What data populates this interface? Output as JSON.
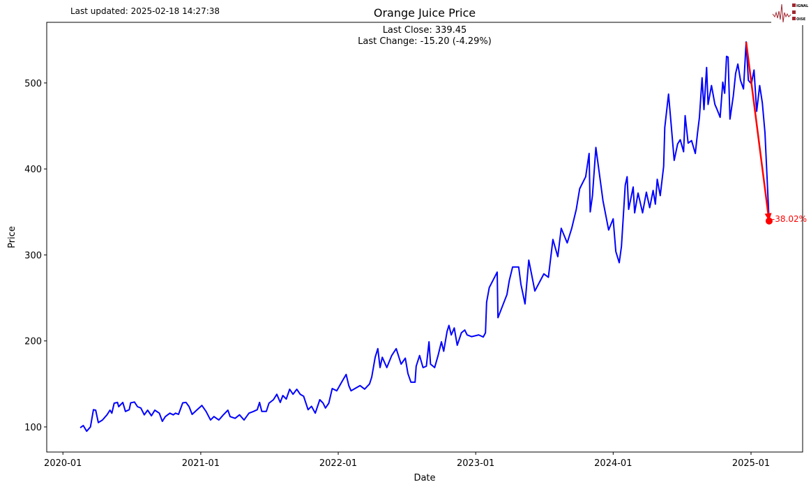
{
  "header": {
    "last_updated": "Last updated: 2025-02-18 14:27:38",
    "logo_text": "SIGNAL 2 NOISE"
  },
  "chart_data": {
    "type": "line",
    "title": "Orange Juice  Price",
    "subtitle_lines": [
      "Last Close: 339.45",
      "Last Change: -15.20 (-4.29%)"
    ],
    "xlabel": "Date",
    "ylabel": "Price",
    "xlim": [
      "2019-11-19",
      "2025-05-18"
    ],
    "ylim": [
      70.8,
      570.5
    ],
    "x_ticks": [
      {
        "date": "2020-01-01",
        "label": "2020-01"
      },
      {
        "date": "2021-01-01",
        "label": "2021-01"
      },
      {
        "date": "2022-01-01",
        "label": "2022-01"
      },
      {
        "date": "2023-01-01",
        "label": "2023-01"
      },
      {
        "date": "2024-01-01",
        "label": "2024-01"
      },
      {
        "date": "2025-01-01",
        "label": "2025-01"
      }
    ],
    "y_ticks": [
      100,
      200,
      300,
      400,
      500
    ],
    "grid": false,
    "colors": {
      "series": "#0000ff",
      "annotation": "#ff0000"
    },
    "series": [
      {
        "points": [
          [
            "2020-02-16",
            99
          ],
          [
            "2020-02-24",
            101.6
          ],
          [
            "2020-03-04",
            95
          ],
          [
            "2020-03-14",
            100
          ],
          [
            "2020-03-22",
            120
          ],
          [
            "2020-03-28",
            119.5
          ],
          [
            "2020-04-04",
            105
          ],
          [
            "2020-04-15",
            108
          ],
          [
            "2020-04-27",
            114
          ],
          [
            "2020-05-05",
            119.5
          ],
          [
            "2020-05-10",
            116
          ],
          [
            "2020-05-16",
            127.6
          ],
          [
            "2020-05-25",
            128.5
          ],
          [
            "2020-05-28",
            123.5
          ],
          [
            "2020-06-08",
            128.5
          ],
          [
            "2020-06-15",
            118
          ],
          [
            "2020-06-25",
            120
          ],
          [
            "2020-06-29",
            128
          ],
          [
            "2020-07-09",
            129
          ],
          [
            "2020-07-17",
            123.5
          ],
          [
            "2020-07-26",
            122
          ],
          [
            "2020-08-04",
            114
          ],
          [
            "2020-08-13",
            119.5
          ],
          [
            "2020-08-23",
            113
          ],
          [
            "2020-09-01",
            119.5
          ],
          [
            "2020-09-13",
            116
          ],
          [
            "2020-09-21",
            106.5
          ],
          [
            "2020-09-29",
            112
          ],
          [
            "2020-10-11",
            116
          ],
          [
            "2020-10-20",
            114
          ],
          [
            "2020-10-26",
            116
          ],
          [
            "2020-11-03",
            114.6
          ],
          [
            "2020-11-14",
            128
          ],
          [
            "2020-11-23",
            128.5
          ],
          [
            "2020-12-01",
            123.5
          ],
          [
            "2020-12-09",
            114.6
          ],
          [
            "2020-12-21",
            119.5
          ],
          [
            "2021-01-04",
            125
          ],
          [
            "2021-01-15",
            118
          ],
          [
            "2021-01-27",
            108
          ],
          [
            "2021-02-05",
            112
          ],
          [
            "2021-02-18",
            108
          ],
          [
            "2021-03-02",
            114
          ],
          [
            "2021-03-14",
            119.5
          ],
          [
            "2021-03-20",
            112
          ],
          [
            "2021-04-02",
            110
          ],
          [
            "2021-04-14",
            114
          ],
          [
            "2021-04-26",
            108
          ],
          [
            "2021-05-09",
            116
          ],
          [
            "2021-05-21",
            118
          ],
          [
            "2021-05-31",
            120
          ],
          [
            "2021-06-06",
            128.5
          ],
          [
            "2021-06-12",
            118
          ],
          [
            "2021-06-24",
            118
          ],
          [
            "2021-07-01",
            127.6
          ],
          [
            "2021-07-13",
            131.6
          ],
          [
            "2021-07-22",
            138
          ],
          [
            "2021-07-31",
            128.5
          ],
          [
            "2021-08-07",
            136.5
          ],
          [
            "2021-08-16",
            132.4
          ],
          [
            "2021-08-25",
            143.8
          ],
          [
            "2021-09-03",
            138
          ],
          [
            "2021-09-13",
            143.8
          ],
          [
            "2021-09-22",
            138
          ],
          [
            "2021-10-01",
            135.7
          ],
          [
            "2021-10-13",
            120
          ],
          [
            "2021-10-22",
            124
          ],
          [
            "2021-11-01",
            116
          ],
          [
            "2021-11-13",
            131.6
          ],
          [
            "2021-11-22",
            127.6
          ],
          [
            "2021-11-28",
            122
          ],
          [
            "2021-12-07",
            127.6
          ],
          [
            "2021-12-16",
            144.6
          ],
          [
            "2021-12-28",
            142
          ],
          [
            "2022-01-10",
            152
          ],
          [
            "2022-01-22",
            161
          ],
          [
            "2022-01-29",
            148
          ],
          [
            "2022-02-04",
            142
          ],
          [
            "2022-02-28",
            148
          ],
          [
            "2022-03-12",
            144
          ],
          [
            "2022-03-25",
            150
          ],
          [
            "2022-03-31",
            158
          ],
          [
            "2022-04-09",
            181
          ],
          [
            "2022-04-16",
            191
          ],
          [
            "2022-04-22",
            169
          ],
          [
            "2022-04-28",
            181
          ],
          [
            "2022-05-10",
            169
          ],
          [
            "2022-05-23",
            183
          ],
          [
            "2022-06-04",
            191
          ],
          [
            "2022-06-17",
            173
          ],
          [
            "2022-06-28",
            180
          ],
          [
            "2022-07-05",
            162
          ],
          [
            "2022-07-13",
            152
          ],
          [
            "2022-07-24",
            152
          ],
          [
            "2022-07-27",
            170.6
          ],
          [
            "2022-08-05",
            183
          ],
          [
            "2022-08-14",
            169
          ],
          [
            "2022-08-23",
            170.6
          ],
          [
            "2022-08-30",
            199
          ],
          [
            "2022-09-03",
            173
          ],
          [
            "2022-09-14",
            169
          ],
          [
            "2022-09-23",
            183
          ],
          [
            "2022-10-02",
            199
          ],
          [
            "2022-10-08",
            188
          ],
          [
            "2022-10-17",
            211
          ],
          [
            "2022-10-22",
            218
          ],
          [
            "2022-10-28",
            207
          ],
          [
            "2022-11-05",
            215
          ],
          [
            "2022-11-13",
            195
          ],
          [
            "2022-11-24",
            209.5
          ],
          [
            "2022-12-03",
            212.7
          ],
          [
            "2022-12-09",
            207
          ],
          [
            "2022-12-21",
            205
          ],
          [
            "2023-01-09",
            207
          ],
          [
            "2023-01-21",
            204.6
          ],
          [
            "2023-01-27",
            209.5
          ],
          [
            "2023-01-30",
            245
          ],
          [
            "2023-02-06",
            262
          ],
          [
            "2023-02-27",
            280
          ],
          [
            "2023-03-01",
            227
          ],
          [
            "2023-03-25",
            254
          ],
          [
            "2023-03-31",
            270
          ],
          [
            "2023-04-09",
            286
          ],
          [
            "2023-04-25",
            286
          ],
          [
            "2023-05-01",
            266
          ],
          [
            "2023-05-12",
            243
          ],
          [
            "2023-05-22",
            294
          ],
          [
            "2023-06-07",
            258
          ],
          [
            "2023-07-01",
            278
          ],
          [
            "2023-07-13",
            274
          ],
          [
            "2023-07-25",
            318
          ],
          [
            "2023-08-07",
            298
          ],
          [
            "2023-08-16",
            331
          ],
          [
            "2023-09-01",
            314
          ],
          [
            "2023-09-13",
            331
          ],
          [
            "2023-09-25",
            353
          ],
          [
            "2023-10-04",
            377
          ],
          [
            "2023-10-20",
            391
          ],
          [
            "2023-10-29",
            418
          ],
          [
            "2023-11-01",
            350
          ],
          [
            "2023-11-07",
            369
          ],
          [
            "2023-11-16",
            425
          ],
          [
            "2023-12-05",
            363
          ],
          [
            "2023-12-20",
            329
          ],
          [
            "2024-01-01",
            342
          ],
          [
            "2024-01-08",
            304
          ],
          [
            "2024-01-17",
            291
          ],
          [
            "2024-01-23",
            310
          ],
          [
            "2024-02-02",
            381
          ],
          [
            "2024-02-07",
            391
          ],
          [
            "2024-02-11",
            353
          ],
          [
            "2024-02-23",
            379
          ],
          [
            "2024-02-27",
            349
          ],
          [
            "2024-03-07",
            372
          ],
          [
            "2024-03-19",
            349
          ],
          [
            "2024-03-29",
            373
          ],
          [
            "2024-04-07",
            355
          ],
          [
            "2024-04-16",
            375
          ],
          [
            "2024-04-22",
            359
          ],
          [
            "2024-04-27",
            388
          ],
          [
            "2024-05-05",
            369
          ],
          [
            "2024-05-14",
            403
          ],
          [
            "2024-05-17",
            448
          ],
          [
            "2024-05-27",
            487
          ],
          [
            "2024-06-02",
            456
          ],
          [
            "2024-06-11",
            410
          ],
          [
            "2024-06-20",
            429
          ],
          [
            "2024-06-27",
            434
          ],
          [
            "2024-07-06",
            420
          ],
          [
            "2024-07-10",
            462
          ],
          [
            "2024-07-18",
            430
          ],
          [
            "2024-07-27",
            433
          ],
          [
            "2024-08-06",
            418
          ],
          [
            "2024-08-12",
            442
          ],
          [
            "2024-08-17",
            460
          ],
          [
            "2024-08-24",
            506
          ],
          [
            "2024-08-29",
            469
          ],
          [
            "2024-09-05",
            518
          ],
          [
            "2024-09-09",
            475
          ],
          [
            "2024-09-18",
            497
          ],
          [
            "2024-09-27",
            475
          ],
          [
            "2024-10-03",
            469
          ],
          [
            "2024-10-11",
            460
          ],
          [
            "2024-10-18",
            501
          ],
          [
            "2024-10-23",
            488
          ],
          [
            "2024-10-28",
            531
          ],
          [
            "2024-11-01",
            530
          ],
          [
            "2024-11-06",
            458
          ],
          [
            "2024-11-15",
            485
          ],
          [
            "2024-11-21",
            511
          ],
          [
            "2024-11-27",
            522
          ],
          [
            "2024-12-04",
            503
          ],
          [
            "2024-12-12",
            493
          ],
          [
            "2024-12-19",
            547.7
          ],
          [
            "2024-12-25",
            503
          ],
          [
            "2025-01-02",
            499
          ],
          [
            "2025-01-09",
            515
          ],
          [
            "2025-01-16",
            467
          ],
          [
            "2025-01-24",
            497
          ],
          [
            "2025-01-31",
            477
          ],
          [
            "2025-02-07",
            442
          ],
          [
            "2025-02-18",
            339.45
          ]
        ]
      }
    ],
    "annotation": {
      "label": "-38.02%",
      "from": [
        "2024-12-19",
        547.7
      ],
      "to": [
        "2025-02-18",
        339.45
      ]
    }
  }
}
